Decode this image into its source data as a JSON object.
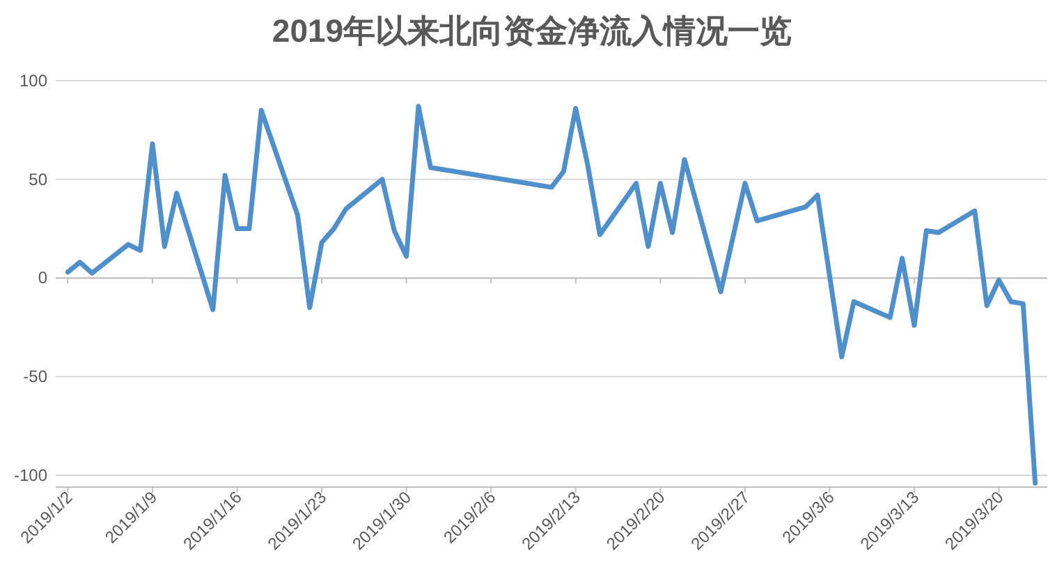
{
  "chart_data": {
    "type": "line",
    "title": "2019年以来北向资金净流入情况一览",
    "x": [
      "2019-01-02",
      "2019-01-03",
      "2019-01-04",
      "2019-01-07",
      "2019-01-08",
      "2019-01-09",
      "2019-01-10",
      "2019-01-11",
      "2019-01-14",
      "2019-01-15",
      "2019-01-16",
      "2019-01-17",
      "2019-01-18",
      "2019-01-21",
      "2019-01-22",
      "2019-01-23",
      "2019-01-24",
      "2019-01-25",
      "2019-01-28",
      "2019-01-29",
      "2019-01-30",
      "2019-01-31",
      "2019-02-01",
      "2019-02-11",
      "2019-02-12",
      "2019-02-13",
      "2019-02-14",
      "2019-02-15",
      "2019-02-18",
      "2019-02-19",
      "2019-02-20",
      "2019-02-21",
      "2019-02-22",
      "2019-02-25",
      "2019-02-27",
      "2019-02-28",
      "2019-03-04",
      "2019-03-05",
      "2019-03-07",
      "2019-03-08",
      "2019-03-11",
      "2019-03-12",
      "2019-03-13",
      "2019-03-14",
      "2019-03-15",
      "2019-03-18",
      "2019-03-19",
      "2019-03-20",
      "2019-03-21",
      "2019-03-22",
      "2019-03-23"
    ],
    "values": [
      3,
      8,
      2.5,
      17,
      14,
      68,
      16,
      43,
      -16,
      52,
      25,
      25,
      85,
      32,
      -15,
      18,
      25,
      35,
      50,
      24,
      11,
      87,
      56,
      46,
      54,
      86,
      57,
      22,
      48,
      16,
      48,
      23,
      60,
      -7,
      48,
      29,
      36,
      42,
      -40,
      -12,
      -20,
      10,
      -24,
      24,
      23,
      34,
      -14,
      -1,
      -12,
      -13,
      -104
    ],
    "color": "#4f8fcb",
    "xlim": [
      "2019-01-01",
      "2019-03-24"
    ],
    "xticks": [
      {
        "value": "2019-01-02",
        "label": "2019/1/2"
      },
      {
        "value": "2019-01-09",
        "label": "2019/1/9"
      },
      {
        "value": "2019-01-16",
        "label": "2019/1/16"
      },
      {
        "value": "2019-01-23",
        "label": "2019/1/23"
      },
      {
        "value": "2019-01-30",
        "label": "2019/1/30"
      },
      {
        "value": "2019-02-06",
        "label": "2019/2/6"
      },
      {
        "value": "2019-02-13",
        "label": "2019/2/13"
      },
      {
        "value": "2019-02-20",
        "label": "2019/2/20"
      },
      {
        "value": "2019-02-27",
        "label": "2019/2/27"
      },
      {
        "value": "2019-03-06",
        "label": "2019/3/6"
      },
      {
        "value": "2019-03-13",
        "label": "2019/3/13"
      },
      {
        "value": "2019-03-20",
        "label": "2019/3/20"
      }
    ],
    "ylim": [
      -106,
      100
    ],
    "yticks": [
      -100,
      -50,
      0,
      50,
      100
    ],
    "grid": "y"
  }
}
